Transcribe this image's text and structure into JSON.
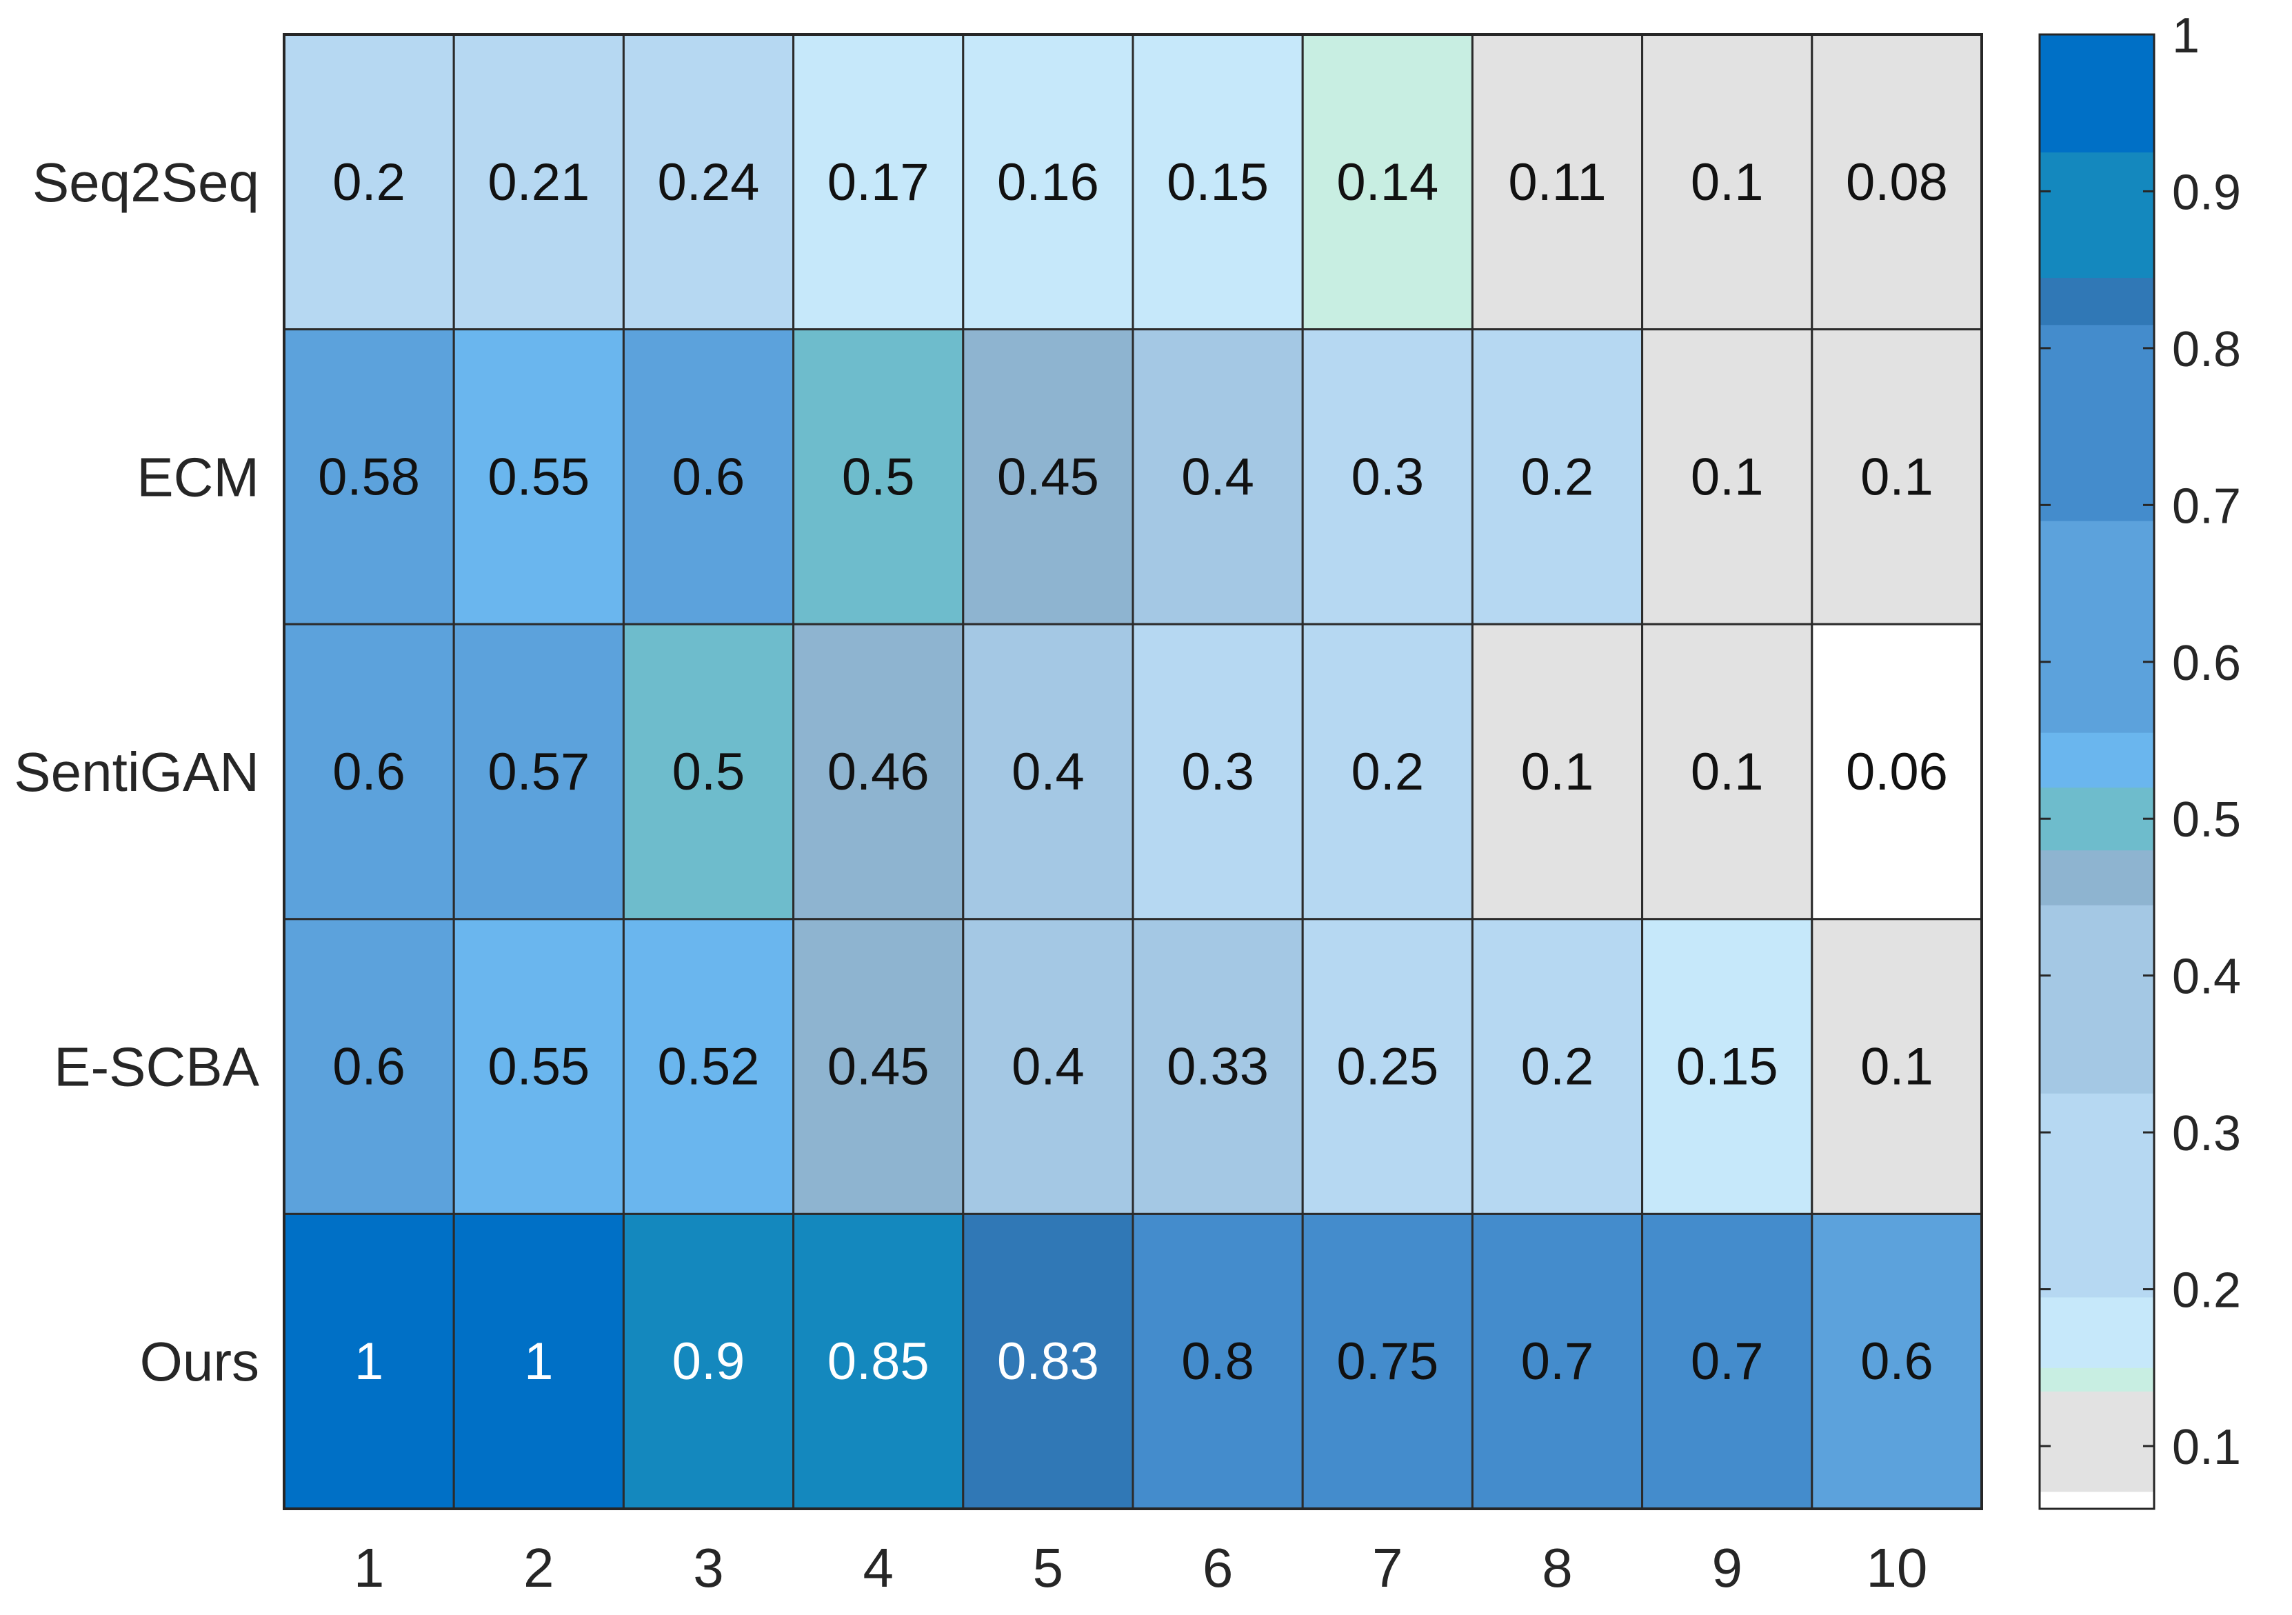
{
  "chart_data": {
    "type": "heatmap",
    "title": "",
    "xlabel": "",
    "ylabel": "",
    "rows": [
      "Seq2Seq",
      "ECM",
      "SentiGAN",
      "E-SCBA",
      "Ours"
    ],
    "columns": [
      "1",
      "2",
      "3",
      "4",
      "5",
      "6",
      "7",
      "8",
      "9",
      "10"
    ],
    "values": [
      [
        0.2,
        0.21,
        0.24,
        0.17,
        0.16,
        0.15,
        0.14,
        0.11,
        0.1,
        0.08
      ],
      [
        0.58,
        0.55,
        0.6,
        0.5,
        0.45,
        0.4,
        0.3,
        0.2,
        0.1,
        0.1
      ],
      [
        0.6,
        0.57,
        0.5,
        0.46,
        0.4,
        0.3,
        0.2,
        0.1,
        0.1,
        0.06
      ],
      [
        0.6,
        0.55,
        0.52,
        0.45,
        0.4,
        0.33,
        0.25,
        0.2,
        0.15,
        0.1
      ],
      [
        1,
        1,
        0.9,
        0.85,
        0.83,
        0.8,
        0.75,
        0.7,
        0.7,
        0.6
      ]
    ],
    "cell_labels": [
      [
        "0.2",
        "0.21",
        "0.24",
        "0.17",
        "0.16",
        "0.15",
        "0.14",
        "0.11",
        "0.1",
        "0.08"
      ],
      [
        "0.58",
        "0.55",
        "0.6",
        "0.5",
        "0.45",
        "0.4",
        "0.3",
        "0.2",
        "0.1",
        "0.1"
      ],
      [
        "0.6",
        "0.57",
        "0.5",
        "0.46",
        "0.4",
        "0.3",
        "0.2",
        "0.1",
        "0.1",
        "0.06"
      ],
      [
        "0.6",
        "0.55",
        "0.52",
        "0.45",
        "0.4",
        "0.33",
        "0.25",
        "0.2",
        "0.15",
        "0.1"
      ],
      [
        "1",
        "1",
        "0.9",
        "0.85",
        "0.83",
        "0.8",
        "0.75",
        "0.7",
        "0.7",
        "0.6"
      ]
    ],
    "colorbar": {
      "range": [
        0.06,
        1.0
      ],
      "ticks": [
        0.1,
        0.2,
        0.3,
        0.4,
        0.5,
        0.6,
        0.7,
        0.8,
        0.9,
        1
      ],
      "tick_labels": [
        "0.1",
        "0.2",
        "0.3",
        "0.4",
        "0.5",
        "0.6",
        "0.7",
        "0.8",
        "0.9",
        "1"
      ],
      "placement": "right",
      "bands": [
        {
          "from": 0.06,
          "to": 0.071,
          "color": "#ffffff"
        },
        {
          "from": 0.071,
          "to": 0.135,
          "color": "#e2e2e2"
        },
        {
          "from": 0.135,
          "to": 0.15,
          "color": "#c8eee2"
        },
        {
          "from": 0.15,
          "to": 0.195,
          "color": "#c6e8fa"
        },
        {
          "from": 0.195,
          "to": 0.325,
          "color": "#b6d8f2"
        },
        {
          "from": 0.325,
          "to": 0.445,
          "color": "#a4c8e4"
        },
        {
          "from": 0.445,
          "to": 0.48,
          "color": "#8eb4d0"
        },
        {
          "from": 0.48,
          "to": 0.52,
          "color": "#6ebccc"
        },
        {
          "from": 0.52,
          "to": 0.555,
          "color": "#6ab6ee"
        },
        {
          "from": 0.555,
          "to": 0.69,
          "color": "#5ca2dc"
        },
        {
          "from": 0.69,
          "to": 0.815,
          "color": "#448ccc"
        },
        {
          "from": 0.815,
          "to": 0.845,
          "color": "#3078b6"
        },
        {
          "from": 0.845,
          "to": 0.925,
          "color": "#1488be"
        },
        {
          "from": 0.925,
          "to": 1.0,
          "color": "#0070c6"
        }
      ]
    },
    "text_colors": {
      "dark": "#111111",
      "light": "#ffffff",
      "light_threshold": 0.8
    }
  }
}
